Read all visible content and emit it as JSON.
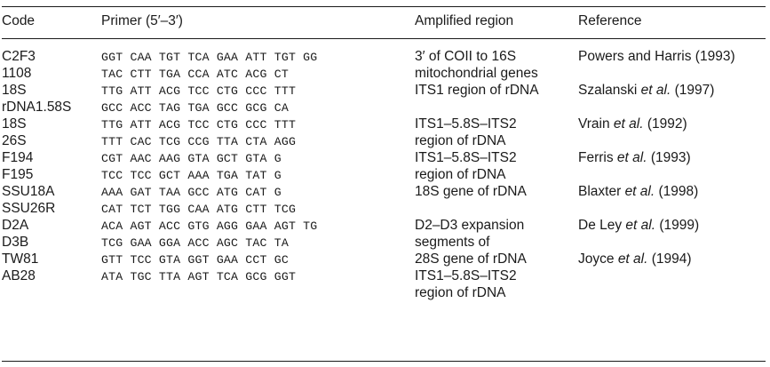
{
  "table": {
    "headers": {
      "code": "Code",
      "primer": "Primer (5′–3′)",
      "region": "Amplified region",
      "reference": "Reference"
    },
    "rows": [
      {
        "code": "C2F3",
        "primer": "GGT CAA TGT TCA GAA ATT TGT GG",
        "region": "3′ of COII to 16S",
        "ref_a": "Powers and Harris (1993)",
        "ref_b": "",
        "ref_c": ""
      },
      {
        "code": "1108",
        "primer": "TAC CTT TGA CCA ATC ACG CT",
        "region": "mitochondrial genes",
        "ref_a": "",
        "ref_b": "",
        "ref_c": ""
      },
      {
        "code": "18S",
        "primer": "TTG ATT ACG TCC CTG CCC TTT",
        "region": "ITS1 region of rDNA",
        "ref_a": "Szalanski ",
        "ref_b": "et al.",
        "ref_c": " (1997)"
      },
      {
        "code": "rDNA1.58S",
        "primer": "GCC ACC TAG TGA GCC GCG CA",
        "region": "",
        "ref_a": "",
        "ref_b": "",
        "ref_c": ""
      },
      {
        "code": "18S",
        "primer": "TTG ATT ACG TCC CTG CCC TTT",
        "region": "ITS1–5.8S–ITS2",
        "ref_a": "Vrain ",
        "ref_b": "et al.",
        "ref_c": " (1992)"
      },
      {
        "code": "26S",
        "primer": "TTT CAC TCG CCG TTA CTA AGG",
        "region": "region of rDNA",
        "ref_a": "",
        "ref_b": "",
        "ref_c": ""
      },
      {
        "code": "F194",
        "primer": "CGT AAC AAG GTA GCT GTA G",
        "region": "ITS1–5.8S–ITS2",
        "ref_a": "Ferris ",
        "ref_b": "et al.",
        "ref_c": " (1993)"
      },
      {
        "code": "F195",
        "primer": "TCC TCC GCT AAA TGA TAT G",
        "region": "region of rDNA",
        "ref_a": "",
        "ref_b": "",
        "ref_c": ""
      },
      {
        "code": "SSU18A",
        "primer": "AAA GAT TAA GCC ATG CAT G",
        "region": "18S gene of rDNA",
        "ref_a": "Blaxter ",
        "ref_b": "et al.",
        "ref_c": " (1998)"
      },
      {
        "code": "SSU26R",
        "primer": "CAT TCT TGG CAA ATG CTT TCG",
        "region": "",
        "ref_a": "",
        "ref_b": "",
        "ref_c": ""
      },
      {
        "code": "D2A",
        "primer": "ACA AGT ACC GTG AGG GAA AGT TG",
        "region": "D2–D3 expansion",
        "ref_a": "De Ley ",
        "ref_b": "et al.",
        "ref_c": " (1999)"
      },
      {
        "code": "D3B",
        "primer": "TCG GAA GGA ACC AGC TAC TA",
        "region": "segments of",
        "ref_a": "",
        "ref_b": "",
        "ref_c": ""
      },
      {
        "code": "TW81",
        "primer": "GTT TCC GTA GGT GAA CCT GC",
        "region": "28S gene of rDNA",
        "ref_a": "Joyce ",
        "ref_b": "et al.",
        "ref_c": " (1994)"
      },
      {
        "code": "AB28",
        "primer": "ATA TGC TTA AGT TCA GCG GGT",
        "region": "ITS1–5.8S–ITS2",
        "ref_a": "",
        "ref_b": "",
        "ref_c": ""
      },
      {
        "code": "",
        "primer": "",
        "region": "region of rDNA",
        "ref_a": "",
        "ref_b": "",
        "ref_c": ""
      }
    ]
  }
}
